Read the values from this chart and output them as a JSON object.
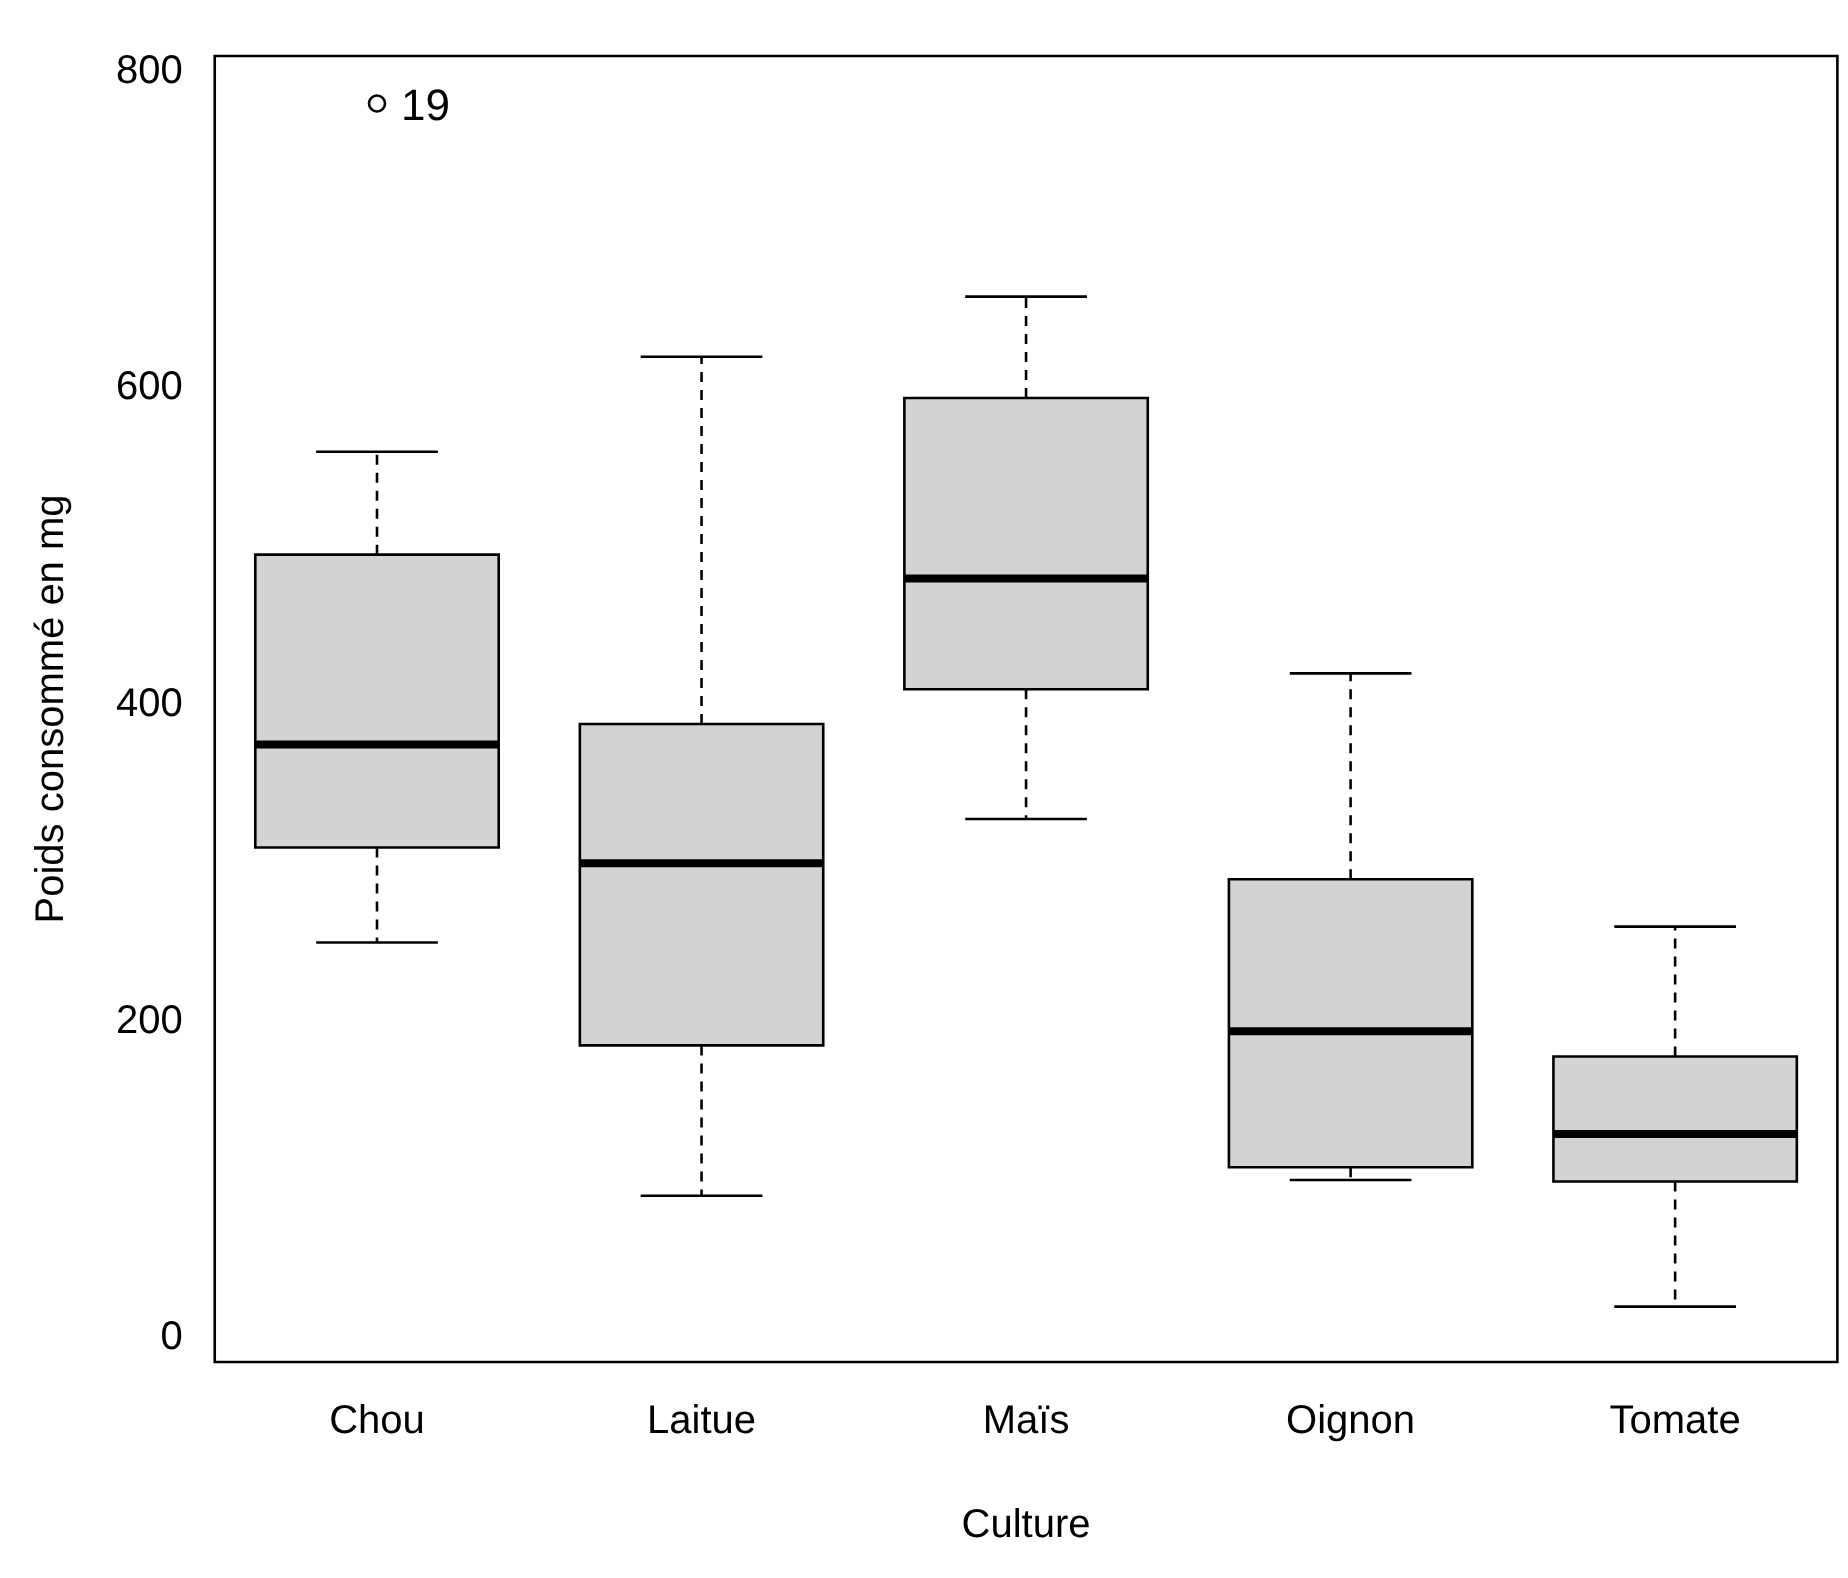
{
  "chart_data": {
    "type": "box",
    "xlabel": "Culture",
    "ylabel": "Poids consommé en mg",
    "categories": [
      "Chou",
      "Laitue",
      "Maïs",
      "Oignon",
      "Tomate"
    ],
    "boxes": [
      {
        "low": 250,
        "q1": 310,
        "median": 375,
        "q3": 495,
        "high": 560,
        "outliers": [
          780
        ]
      },
      {
        "low": 90,
        "q1": 185,
        "median": 300,
        "q3": 388,
        "high": 620
      },
      {
        "low": 328,
        "q1": 410,
        "median": 480,
        "q3": 594,
        "high": 658
      },
      {
        "low": 100,
        "q1": 108,
        "median": 194,
        "q3": 290,
        "high": 420
      },
      {
        "low": 20,
        "q1": 99,
        "median": 129,
        "q3": 178,
        "high": 260
      }
    ],
    "color": "#d3d3d3",
    "annotations": [
      "19"
    ],
    "ylim": [
      -15,
      810
    ],
    "yticks": [
      0,
      200,
      400,
      600,
      800
    ],
    "grid": false,
    "legend": false,
    "marker": "circle",
    "line_style": "dashed"
  }
}
